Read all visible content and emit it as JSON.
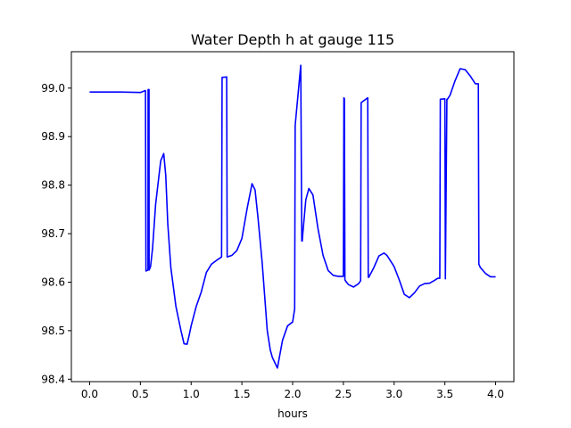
{
  "chart_data": {
    "type": "line",
    "title": "Water Depth h at gauge 115",
    "xlabel": "hours",
    "ylabel": "",
    "xlim": [
      -0.18,
      4.18
    ],
    "ylim": [
      98.395,
      99.075
    ],
    "xticks": [
      0.0,
      0.5,
      1.0,
      1.5,
      2.0,
      2.5,
      3.0,
      3.5,
      4.0
    ],
    "xtick_labels": [
      "0.0",
      "0.5",
      "1.0",
      "1.5",
      "2.0",
      "2.5",
      "3.0",
      "3.5",
      "4.0"
    ],
    "yticks": [
      98.4,
      98.5,
      98.6,
      98.7,
      98.8,
      98.9,
      99.0
    ],
    "ytick_labels": [
      "98.4",
      "98.5",
      "98.6",
      "98.7",
      "98.8",
      "98.9",
      "99.0"
    ],
    "grid": false,
    "legend": "none",
    "series": [
      {
        "color": "#0000ff",
        "x": [
          0.0,
          0.3,
          0.5,
          0.55,
          0.555,
          0.575,
          0.576,
          0.585,
          0.586,
          0.6,
          0.62,
          0.65,
          0.7,
          0.73,
          0.75,
          0.77,
          0.8,
          0.85,
          0.9,
          0.93,
          0.96,
          0.98,
          1.0,
          1.05,
          1.1,
          1.15,
          1.2,
          1.25,
          1.3,
          1.305,
          1.35,
          1.355,
          1.4,
          1.45,
          1.5,
          1.55,
          1.6,
          1.63,
          1.66,
          1.7,
          1.75,
          1.78,
          1.8,
          1.85,
          1.9,
          1.95,
          2.0,
          2.02,
          2.025,
          2.08,
          2.09,
          2.095,
          2.1,
          2.13,
          2.16,
          2.2,
          2.25,
          2.3,
          2.35,
          2.4,
          2.45,
          2.48,
          2.5,
          2.505,
          2.51,
          2.515,
          2.52,
          2.55,
          2.6,
          2.65,
          2.67,
          2.675,
          2.74,
          2.745,
          2.75,
          2.8,
          2.85,
          2.9,
          2.93,
          2.97,
          3.0,
          3.05,
          3.1,
          3.15,
          3.2,
          3.25,
          3.3,
          3.35,
          3.4,
          3.43,
          3.45,
          3.455,
          3.5,
          3.505,
          3.52,
          3.525,
          3.55,
          3.6,
          3.65,
          3.7,
          3.75,
          3.8,
          3.83,
          3.835,
          3.85,
          3.9,
          3.95,
          4.0
        ],
        "y": [
          98.992,
          98.992,
          98.991,
          98.995,
          98.623,
          98.625,
          98.997,
          98.997,
          98.625,
          98.632,
          98.67,
          98.76,
          98.85,
          98.865,
          98.82,
          98.72,
          98.63,
          98.55,
          98.5,
          98.473,
          98.472,
          98.49,
          98.51,
          98.55,
          98.58,
          98.62,
          98.637,
          98.645,
          98.652,
          99.022,
          99.023,
          98.652,
          98.655,
          98.665,
          98.69,
          98.75,
          98.803,
          98.79,
          98.73,
          98.64,
          98.5,
          98.46,
          98.445,
          98.423,
          98.48,
          98.51,
          98.518,
          98.545,
          98.923,
          99.047,
          98.685,
          98.685,
          98.7,
          98.77,
          98.793,
          98.78,
          98.71,
          98.655,
          98.624,
          98.614,
          98.612,
          98.612,
          98.612,
          98.98,
          98.978,
          98.605,
          98.603,
          98.595,
          98.59,
          98.597,
          98.603,
          98.97,
          98.98,
          98.61,
          98.61,
          98.63,
          98.654,
          98.66,
          98.655,
          98.642,
          98.632,
          98.605,
          98.575,
          98.568,
          98.578,
          98.592,
          98.597,
          98.598,
          98.604,
          98.608,
          98.608,
          98.977,
          98.978,
          98.607,
          98.977,
          98.977,
          98.985,
          99.015,
          99.04,
          99.038,
          99.025,
          99.009,
          99.009,
          98.637,
          98.63,
          98.618,
          98.611,
          98.611
        ]
      }
    ]
  }
}
